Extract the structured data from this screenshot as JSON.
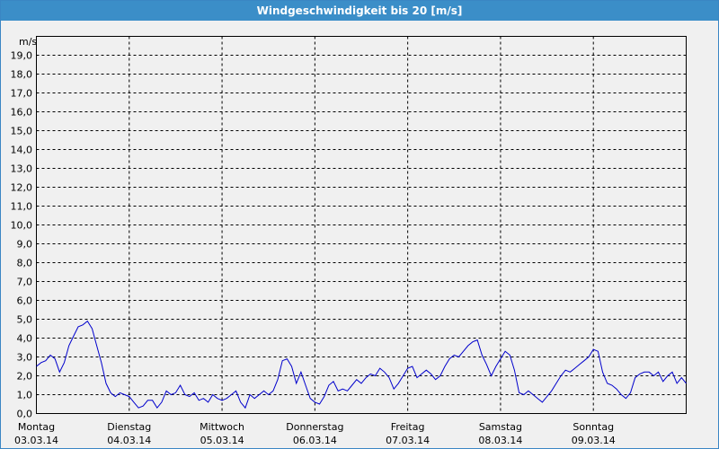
{
  "window": {
    "title": "Windgeschwindigkeit bis 20 [m/s]"
  },
  "colors": {
    "title_bar": "#3b8ec8",
    "line": "#0000cc",
    "grid": "#000000",
    "background": "#f0f0f0"
  },
  "chart_data": {
    "type": "line",
    "title": "Windgeschwindigkeit bis 20 [m/s]",
    "ylabel": "m/s",
    "ylim": [
      0,
      20
    ],
    "yticks": [
      "0,0",
      "1,0",
      "2,0",
      "3,0",
      "4,0",
      "5,0",
      "6,0",
      "7,0",
      "8,0",
      "9,0",
      "10,0",
      "11,0",
      "12,0",
      "13,0",
      "14,0",
      "15,0",
      "16,0",
      "17,0",
      "18,0",
      "19,0"
    ],
    "xlim": [
      0,
      7
    ],
    "days": [
      {
        "name": "Montag",
        "date": "03.03.14"
      },
      {
        "name": "Dienstag",
        "date": "04.03.14"
      },
      {
        "name": "Mittwoch",
        "date": "05.03.14"
      },
      {
        "name": "Donnerstag",
        "date": "06.03.14"
      },
      {
        "name": "Freitag",
        "date": "07.03.14"
      },
      {
        "name": "Samstag",
        "date": "08.03.14"
      },
      {
        "name": "Sonntag",
        "date": "09.03.14"
      }
    ],
    "grid": true,
    "series": [
      {
        "x": [
          0,
          0.05,
          0.1,
          0.15,
          0.2,
          0.25,
          0.3,
          0.35,
          0.4,
          0.45,
          0.5,
          0.55,
          0.6,
          0.65,
          0.7,
          0.75,
          0.8,
          0.85,
          0.9,
          0.95,
          1.0,
          1.05,
          1.1,
          1.15,
          1.2,
          1.25,
          1.3,
          1.35,
          1.4,
          1.45,
          1.5,
          1.55,
          1.6,
          1.65,
          1.7,
          1.75,
          1.8,
          1.85,
          1.9,
          1.95,
          2.0,
          2.05,
          2.1,
          2.15,
          2.2,
          2.25,
          2.3,
          2.35,
          2.4,
          2.45,
          2.5,
          2.55,
          2.6,
          2.65,
          2.7,
          2.75,
          2.8,
          2.85,
          2.9,
          2.95,
          3.0,
          3.05,
          3.1,
          3.15,
          3.2,
          3.25,
          3.3,
          3.35,
          3.4,
          3.45,
          3.5,
          3.55,
          3.6,
          3.65,
          3.7,
          3.75,
          3.8,
          3.85,
          3.9,
          3.95,
          4.0,
          4.05,
          4.1,
          4.15,
          4.2,
          4.25,
          4.3,
          4.35,
          4.4,
          4.45,
          4.5,
          4.55,
          4.6,
          4.65,
          4.7,
          4.75,
          4.8,
          4.85,
          4.9,
          4.95,
          5.0,
          5.05,
          5.1,
          5.15,
          5.2,
          5.25,
          5.3,
          5.35,
          5.4,
          5.45,
          5.5,
          5.55,
          5.6,
          5.65,
          5.7,
          5.75,
          5.8,
          5.85,
          5.9,
          5.95,
          6.0,
          6.05,
          6.1,
          6.15,
          6.2,
          6.25,
          6.3,
          6.35,
          6.4,
          6.45,
          6.5,
          6.55,
          6.6,
          6.65,
          6.7,
          6.75,
          6.8,
          6.85,
          6.9,
          6.95,
          7.0
        ],
        "values": [
          2.5,
          2.7,
          2.8,
          3.1,
          2.9,
          2.2,
          2.7,
          3.6,
          4.1,
          4.6,
          4.7,
          4.9,
          4.5,
          3.6,
          2.7,
          1.6,
          1.1,
          0.9,
          1.1,
          1.0,
          0.9,
          0.6,
          0.3,
          0.4,
          0.7,
          0.7,
          0.3,
          0.6,
          1.2,
          1.0,
          1.1,
          1.5,
          1.0,
          0.9,
          1.1,
          0.7,
          0.8,
          0.6,
          1.0,
          0.8,
          0.7,
          0.8,
          1.0,
          1.2,
          0.6,
          0.3,
          1.0,
          0.8,
          1.0,
          1.2,
          1.0,
          1.2,
          1.8,
          2.8,
          2.9,
          2.5,
          1.6,
          2.2,
          1.5,
          0.8,
          0.6,
          0.5,
          0.9,
          1.5,
          1.7,
          1.2,
          1.3,
          1.2,
          1.5,
          1.8,
          1.6,
          1.9,
          2.1,
          2.0,
          2.4,
          2.2,
          1.9,
          1.3,
          1.6,
          2.0,
          2.4,
          2.5,
          1.9,
          2.1,
          2.3,
          2.1,
          1.8,
          2.0,
          2.5,
          2.9,
          3.1,
          3.0,
          3.3,
          3.6,
          3.8,
          3.9,
          3.1,
          2.6,
          2.0,
          2.5,
          2.9,
          3.3,
          3.1,
          2.3,
          1.1,
          1.0,
          1.2,
          1.0,
          0.8,
          0.6,
          0.9,
          1.2,
          1.6,
          2.0,
          2.3,
          2.2,
          2.4,
          2.6,
          2.8,
          3.0,
          3.4,
          3.3,
          2.2,
          1.6,
          1.5,
          1.3,
          1.0,
          0.8,
          1.1,
          1.9,
          2.1,
          2.2,
          2.2,
          2.0,
          2.2,
          1.7,
          2.0,
          2.2,
          1.6,
          1.9,
          1.6
        ]
      }
    ]
  }
}
